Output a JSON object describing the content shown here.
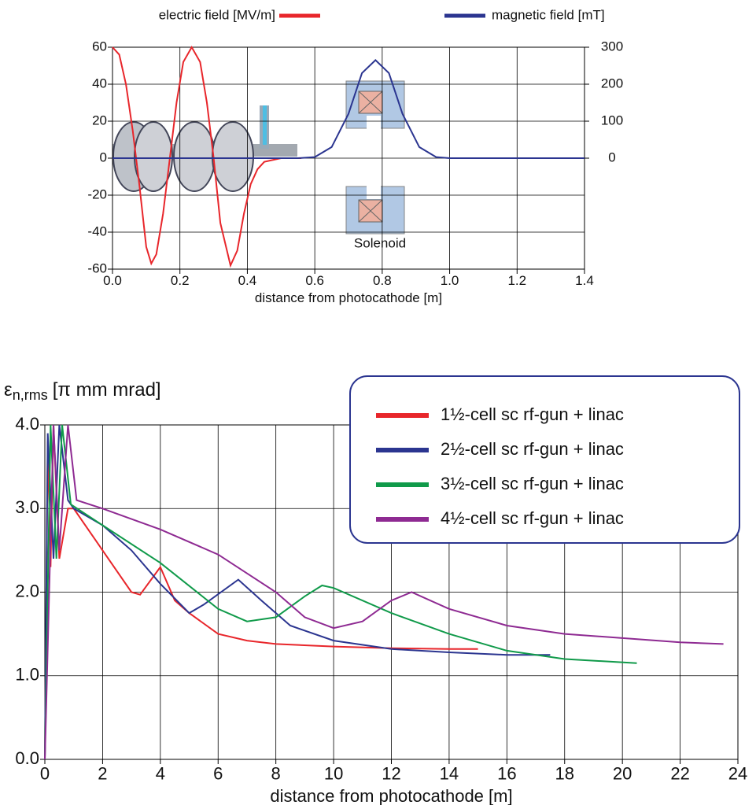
{
  "chart_data": [
    {
      "type": "line",
      "x_label": "distance from photocathode [m]",
      "annotation": "Solenoid",
      "legend": "top",
      "xlim": [
        0,
        1.4
      ],
      "xticks": [
        {
          "value": 0,
          "label": "0.0"
        },
        {
          "value": 0.2,
          "label": "0.2"
        },
        {
          "value": 0.4,
          "label": "0.4"
        },
        {
          "value": 0.6,
          "label": "0.6"
        },
        {
          "value": 0.8,
          "label": "0.8"
        },
        {
          "value": 1.0,
          "label": "1.0"
        },
        {
          "value": 1.2,
          "label": "1.2"
        },
        {
          "value": 1.4,
          "label": "1.4"
        }
      ],
      "ylim": [
        -60,
        60
      ],
      "yticks": [
        60,
        40,
        20,
        0,
        -20,
        -40,
        -60
      ],
      "y2lim": [
        -300,
        300
      ],
      "y2ticks": [
        300,
        200,
        100,
        0
      ],
      "grid": true,
      "series": [
        {
          "name": "electric field [MV/m]",
          "color": "#e8262b",
          "x": [
            0,
            0.02,
            0.04,
            0.06,
            0.08,
            0.1,
            0.115,
            0.13,
            0.15,
            0.17,
            0.19,
            0.21,
            0.235,
            0.26,
            0.28,
            0.3,
            0.32,
            0.35,
            0.37,
            0.39,
            0.41,
            0.43,
            0.45,
            0.5,
            0.56
          ],
          "values": [
            60,
            56,
            40,
            15,
            -15,
            -48,
            -57,
            -52,
            -30,
            0,
            30,
            52,
            60,
            52,
            30,
            0,
            -35,
            -58,
            -50,
            -30,
            -14,
            -6,
            -2,
            0,
            0
          ]
        },
        {
          "name": "magnetic field [mT]",
          "color": "#2b3590",
          "axis": "y2",
          "x": [
            0,
            0.55,
            0.6,
            0.65,
            0.7,
            0.74,
            0.78,
            0.82,
            0.86,
            0.91,
            0.96,
            1.0,
            1.4
          ],
          "values": [
            0,
            0,
            3,
            30,
            120,
            230,
            265,
            230,
            120,
            30,
            3,
            0,
            0
          ]
        }
      ]
    },
    {
      "type": "line",
      "x_label": "distance from photocathode [m]",
      "y_label_symbol": "ε",
      "y_label_subscript": "n,rms",
      "y_label_units": "[π mm mrad]",
      "legend": "upper right",
      "xlim": [
        0,
        24
      ],
      "xticks": [
        0,
        2,
        4,
        6,
        8,
        10,
        12,
        14,
        16,
        18,
        20,
        22,
        24
      ],
      "ylim": [
        0,
        4
      ],
      "yticks": [
        {
          "value": 0,
          "label": "0.0"
        },
        {
          "value": 1,
          "label": "1.0"
        },
        {
          "value": 2,
          "label": "2.0"
        },
        {
          "value": 3,
          "label": "3.0"
        },
        {
          "value": 4,
          "label": "4.0"
        }
      ],
      "grid": true,
      "series": [
        {
          "name": "1½-cell sc rf-gun + linac",
          "color": "#e8262b",
          "x": [
            0,
            0.1,
            0.2,
            0.3,
            0.5,
            0.8,
            1,
            2,
            3,
            3.3,
            4,
            4.5,
            5,
            6,
            7,
            8,
            10,
            12,
            14,
            15
          ],
          "values": [
            0,
            3.8,
            2.3,
            4.0,
            2.4,
            3.0,
            3.0,
            2.5,
            2.0,
            1.97,
            2.3,
            1.9,
            1.75,
            1.5,
            1.42,
            1.38,
            1.35,
            1.33,
            1.32,
            1.32
          ]
        },
        {
          "name": "2½-cell sc rf-gun + linac",
          "color": "#2b3590",
          "x": [
            0,
            0.1,
            0.3,
            0.5,
            0.8,
            1,
            2,
            3,
            4,
            5,
            5.5,
            6.7,
            7.5,
            8.5,
            10,
            12,
            14,
            16,
            17.5
          ],
          "values": [
            0,
            3.9,
            2.4,
            4.0,
            3.1,
            3.0,
            2.8,
            2.5,
            2.1,
            1.75,
            1.85,
            2.15,
            1.9,
            1.6,
            1.42,
            1.32,
            1.28,
            1.25,
            1.25
          ]
        },
        {
          "name": "3½-cell sc rf-gun + linac",
          "color": "#109a4a",
          "x": [
            0,
            0.2,
            0.4,
            0.6,
            0.9,
            2,
            4,
            6,
            7,
            8,
            9,
            9.6,
            10,
            12,
            14,
            16,
            18,
            20.5
          ],
          "values": [
            0,
            4.0,
            2.4,
            4.0,
            3.05,
            2.8,
            2.35,
            1.8,
            1.65,
            1.7,
            1.95,
            2.08,
            2.05,
            1.75,
            1.5,
            1.3,
            1.2,
            1.15
          ]
        },
        {
          "name": "4½-cell sc rf-gun + linac",
          "color": "#8e2a92",
          "x": [
            0,
            0.3,
            0.5,
            0.8,
            1.1,
            2,
            4,
            6,
            8,
            9,
            10,
            11,
            12,
            12.7,
            14,
            16,
            18,
            20,
            22,
            23.5
          ],
          "values": [
            0,
            4.0,
            2.5,
            4.0,
            3.1,
            3.0,
            2.75,
            2.45,
            2.0,
            1.7,
            1.57,
            1.65,
            1.9,
            2.0,
            1.8,
            1.6,
            1.5,
            1.45,
            1.4,
            1.38
          ]
        }
      ]
    }
  ]
}
